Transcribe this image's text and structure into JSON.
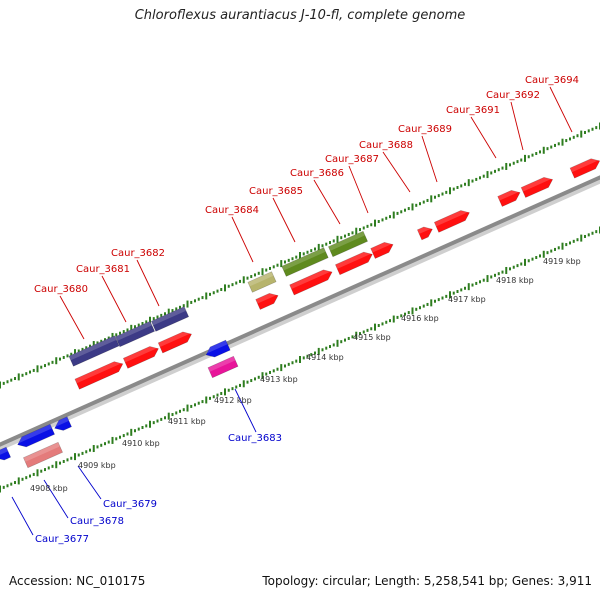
{
  "title": "Chloroflexus aurantiacus J-10-fl, complete genome",
  "footer": {
    "accession": "Accession: NC_010175",
    "summary": "Topology: circular; Length: 5,258,541 bp; Genes: 3,911"
  },
  "colors": {
    "backbone": "#888888",
    "tick": "#2e7d1f",
    "forward_label": "#cc0000",
    "reverse_label": "#0000cc",
    "gene_red": "#ff1010",
    "gene_purple": "#3c3a86",
    "gene_olive": "#5f8a1e",
    "gene_khaki": "#b7b46c",
    "gene_blue": "#0a10e6",
    "gene_magenta": "#e8149a",
    "gene_salmon": "#e47b7b"
  },
  "scale_labels": [
    "4908 kbp",
    "4909 kbp",
    "4910 kbp",
    "4911 kbp",
    "4912 kbp",
    "4913 kbp",
    "4914 kbp",
    "4915 kbp",
    "4916 kbp",
    "4917 kbp",
    "4918 kbp",
    "4919 kbp"
  ],
  "forward_genes": [
    "Caur_3680",
    "Caur_3681",
    "Caur_3682",
    "Caur_3684",
    "Caur_3685",
    "Caur_3686",
    "Caur_3687",
    "Caur_3688",
    "Caur_3689",
    "Caur_3691",
    "Caur_3692",
    "Caur_3694"
  ],
  "reverse_genes": [
    "Caur_3677",
    "Caur_3678",
    "Caur_3679",
    "Caur_3683"
  ]
}
